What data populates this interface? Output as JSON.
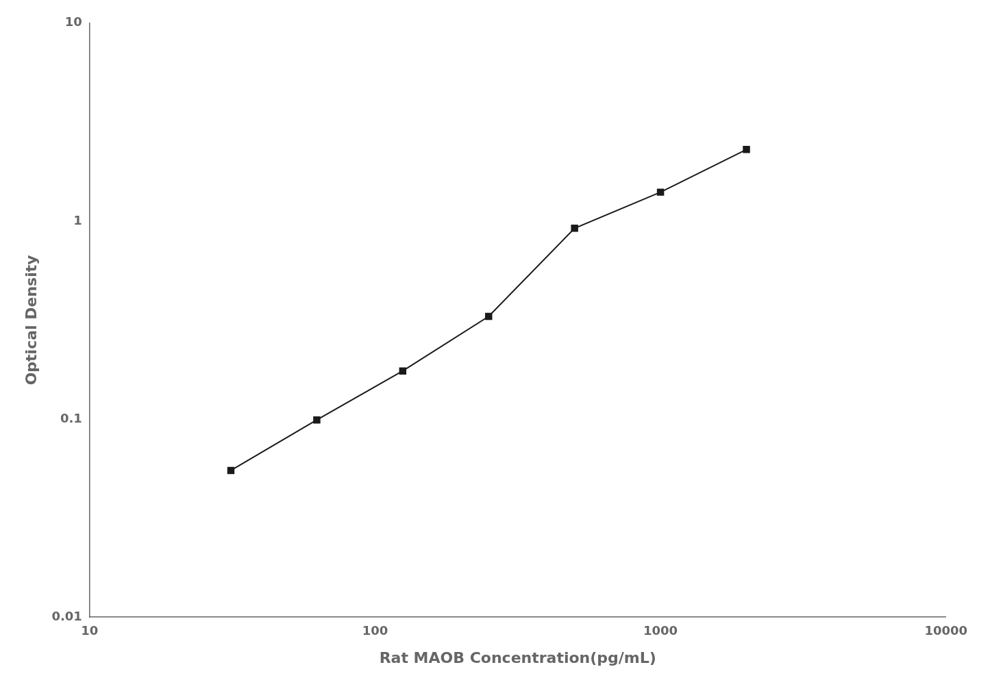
{
  "chart_data": {
    "type": "line",
    "x": [
      31.25,
      62.5,
      125,
      250,
      500,
      1000,
      2000
    ],
    "values": [
      0.055,
      0.099,
      0.175,
      0.33,
      0.92,
      1.4,
      2.3
    ],
    "xlabel": "Rat MAOB Concentration(pg/mL)",
    "ylabel": "Optical Density",
    "xlim": [
      10,
      10000
    ],
    "ylim": [
      0.01,
      10
    ],
    "xticks": [
      10,
      100,
      1000,
      10000
    ],
    "yticks": [
      0.01,
      0.1,
      1,
      10
    ],
    "log": true,
    "grid": false,
    "color": "#1a1a1a",
    "marker": "square",
    "line_style": "solid"
  }
}
